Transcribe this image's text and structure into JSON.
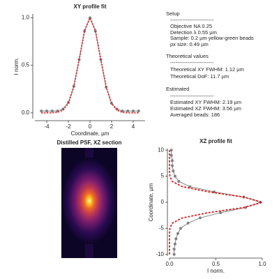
{
  "chart_data": [
    {
      "type": "line",
      "orientation": "vertical",
      "title": "XY profile fit",
      "x_label": "Coordinate, µm",
      "y_label": "I norm.",
      "x": [
        -4.5,
        -4,
        -3.5,
        -3,
        -2.5,
        -2,
        -1.5,
        -1,
        -0.5,
        0,
        0.5,
        1,
        1.5,
        2,
        2.5,
        3,
        3.5,
        4,
        4.5
      ],
      "series": [
        {
          "color": "#808080",
          "marker": true,
          "dash": "none",
          "values": [
            0.02,
            0.02,
            0.02,
            0.02,
            0.04,
            0.11,
            0.28,
            0.56,
            0.86,
            1.0,
            0.86,
            0.56,
            0.27,
            0.1,
            0.04,
            0.02,
            0.02,
            0.02,
            0.02
          ]
        },
        {
          "color": "#dd1c1c",
          "marker": false,
          "dash": "2 2",
          "values": [
            0.0,
            0.0,
            0.001,
            0.006,
            0.027,
            0.099,
            0.272,
            0.561,
            0.866,
            1.0,
            0.866,
            0.561,
            0.272,
            0.099,
            0.027,
            0.006,
            0.001,
            0.0,
            0.0
          ]
        }
      ],
      "xlim": [
        -5.1,
        5.1
      ],
      "ylim": [
        -0.06,
        1.04
      ],
      "xticks": [
        -4,
        -2,
        0,
        2,
        4
      ],
      "yticks": [
        {
          "value": 0,
          "label": "0.0"
        },
        {
          "value": 0.5,
          "label": "0.5"
        },
        {
          "value": 1,
          "label": "1.0"
        }
      ]
    },
    {
      "type": "line",
      "orientation": "horizontal",
      "title": "XZ profile fit",
      "x_label": "I norm.",
      "y_label": "Coordinate, µm",
      "y": [
        -10,
        -9,
        -8,
        -7,
        -6,
        -5,
        -4,
        -3,
        -2,
        -1,
        0,
        1,
        2,
        3,
        4,
        5,
        6,
        7,
        8,
        9,
        10
      ],
      "series": [
        {
          "color": "#808080",
          "marker": true,
          "dash": "none",
          "values": [
            0.05,
            0.05,
            0.06,
            0.07,
            0.09,
            0.12,
            0.2,
            0.33,
            0.55,
            0.82,
            0.98,
            0.8,
            0.48,
            0.22,
            0.1,
            0.06,
            0.04,
            0.03,
            0.03,
            0.02,
            0.02
          ]
        },
        {
          "color": "#dd1c1c",
          "marker": false,
          "dash": "3 2",
          "values": [
            0.0,
            0.0,
            0.0,
            0.0,
            0.0,
            0.004,
            0.03,
            0.139,
            0.417,
            0.803,
            1.0,
            0.803,
            0.417,
            0.139,
            0.03,
            0.004,
            0.0,
            0.0,
            0.0,
            0.0,
            0.0
          ]
        }
      ],
      "xlim": [
        0,
        1
      ],
      "ylim": [
        -10.3,
        10.3
      ],
      "xticks": [
        {
          "value": 0,
          "label": "0.0"
        },
        {
          "value": 0.5,
          "label": "0.5"
        },
        {
          "value": 1,
          "label": "1.0"
        }
      ],
      "yticks": [
        -10,
        -5,
        0,
        5,
        10
      ]
    }
  ],
  "image_panel": {
    "title": "Distilled PSF, XZ section"
  },
  "text_panel": {
    "lines": [
      "Setup",
      "-------------------------",
      "Objective NA 0.25",
      "Detection λ 0.55 µm",
      "Sample: 0.2 µm yellow-green beads",
      "px size: 0.49 µm",
      "Theoretical values",
      "-------------------------",
      "Theoretical XY FWHM: 1.12 µm",
      "Theoretical DoF: 11.7 µm",
      "Estimated",
      "-------------------------",
      "Estimated XY FWHM: 2.19 µm",
      "Estimated XZ FWHM: 3.56 µm",
      "Averaged beads: 186"
    ]
  }
}
